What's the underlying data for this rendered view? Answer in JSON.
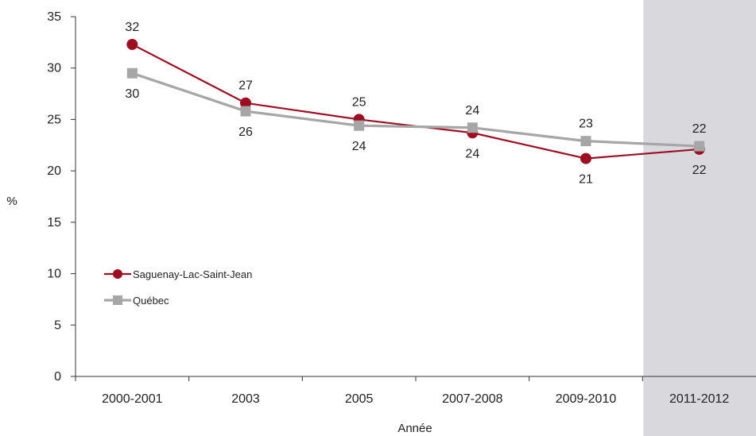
{
  "chart_data": {
    "type": "line",
    "title": "",
    "xlabel": "Année",
    "ylabel": "%",
    "ylim": [
      0,
      35
    ],
    "yticks": [
      0,
      5,
      10,
      15,
      20,
      25,
      30,
      35
    ],
    "categories": [
      "2000-2001",
      "2003",
      "2005",
      "2007-2008",
      "2009-2010",
      "2011-2012"
    ],
    "highlighted_category": "2011-2012",
    "highlight_color": "#d9d9dd",
    "grid": false,
    "legend_position": "lower-left",
    "series": [
      {
        "name": "Saguenay-Lac-Saint-Jean",
        "color": "#9e0e23",
        "marker": "circle",
        "values": [
          32.3,
          26.6,
          25.0,
          23.7,
          21.2,
          22.1
        ],
        "labels": [
          "32",
          "27",
          "25",
          "24",
          "21",
          "22"
        ],
        "label_placement": [
          "above",
          "above",
          "above",
          "below",
          "below",
          "below"
        ]
      },
      {
        "name": "Québec",
        "color": "#a6a6a6",
        "marker": "square",
        "values": [
          29.5,
          25.8,
          24.4,
          24.2,
          22.9,
          22.4
        ],
        "labels": [
          "30",
          "26",
          "24",
          "24",
          "23",
          "22"
        ],
        "label_placement": [
          "below",
          "below",
          "below",
          "above",
          "above",
          "above"
        ]
      }
    ]
  }
}
